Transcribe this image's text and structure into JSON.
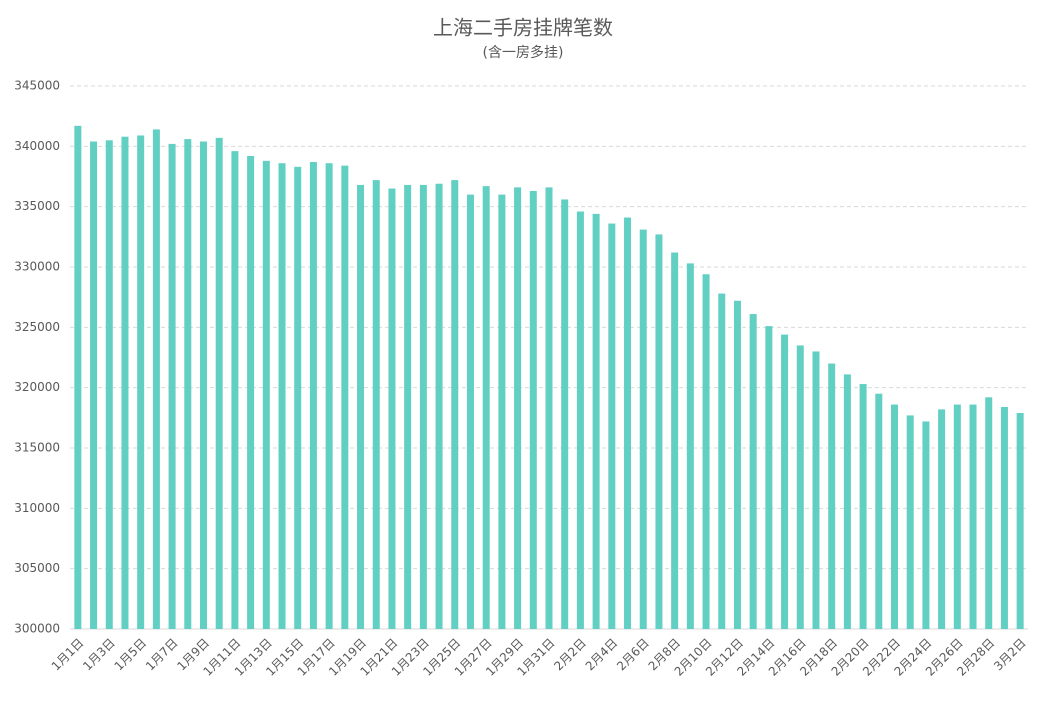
{
  "chart_data": {
    "type": "bar",
    "title": "上海二手房挂牌笔数",
    "subtitle": "(含一房多挂)",
    "categories": [
      "1月1日",
      null,
      "1月3日",
      null,
      "1月5日",
      null,
      "1月7日",
      null,
      "1月9日",
      null,
      "1月11日",
      null,
      "1月13日",
      null,
      "1月15日",
      null,
      "1月17日",
      null,
      "1月19日",
      null,
      "1月21日",
      null,
      "1月23日",
      null,
      "1月25日",
      null,
      "1月27日",
      null,
      "1月29日",
      null,
      "1月31日",
      null,
      "2月2日",
      null,
      "2月4日",
      null,
      "2月6日",
      null,
      "2月8日",
      null,
      "2月10日",
      null,
      "2月12日",
      null,
      "2月14日",
      null,
      "2月16日",
      null,
      "2月18日",
      null,
      "2月20日",
      null,
      "2月22日",
      null,
      "2月24日",
      null,
      "2月26日",
      null,
      "2月28日",
      null,
      "3月2日"
    ],
    "values": [
      341700,
      340400,
      340500,
      340800,
      340900,
      341400,
      340200,
      340600,
      340400,
      340700,
      339600,
      339200,
      338800,
      338600,
      338300,
      338700,
      338600,
      338400,
      336800,
      337200,
      336500,
      336800,
      336800,
      336900,
      337200,
      336000,
      336700,
      336000,
      336600,
      336300,
      336600,
      335600,
      334600,
      334400,
      333600,
      334100,
      333100,
      332700,
      331200,
      330300,
      329400,
      327800,
      327200,
      326100,
      325100,
      324400,
      323500,
      323000,
      322000,
      321100,
      320300,
      319500,
      318600,
      317700,
      317200,
      318200,
      318600,
      318600,
      319200,
      318400,
      317900
    ],
    "color": "#62cfc3",
    "ylim": [
      300000,
      345000
    ],
    "yticks": [
      300000,
      305000,
      310000,
      315000,
      320000,
      325000,
      330000,
      335000,
      340000,
      345000
    ],
    "grid": true
  }
}
